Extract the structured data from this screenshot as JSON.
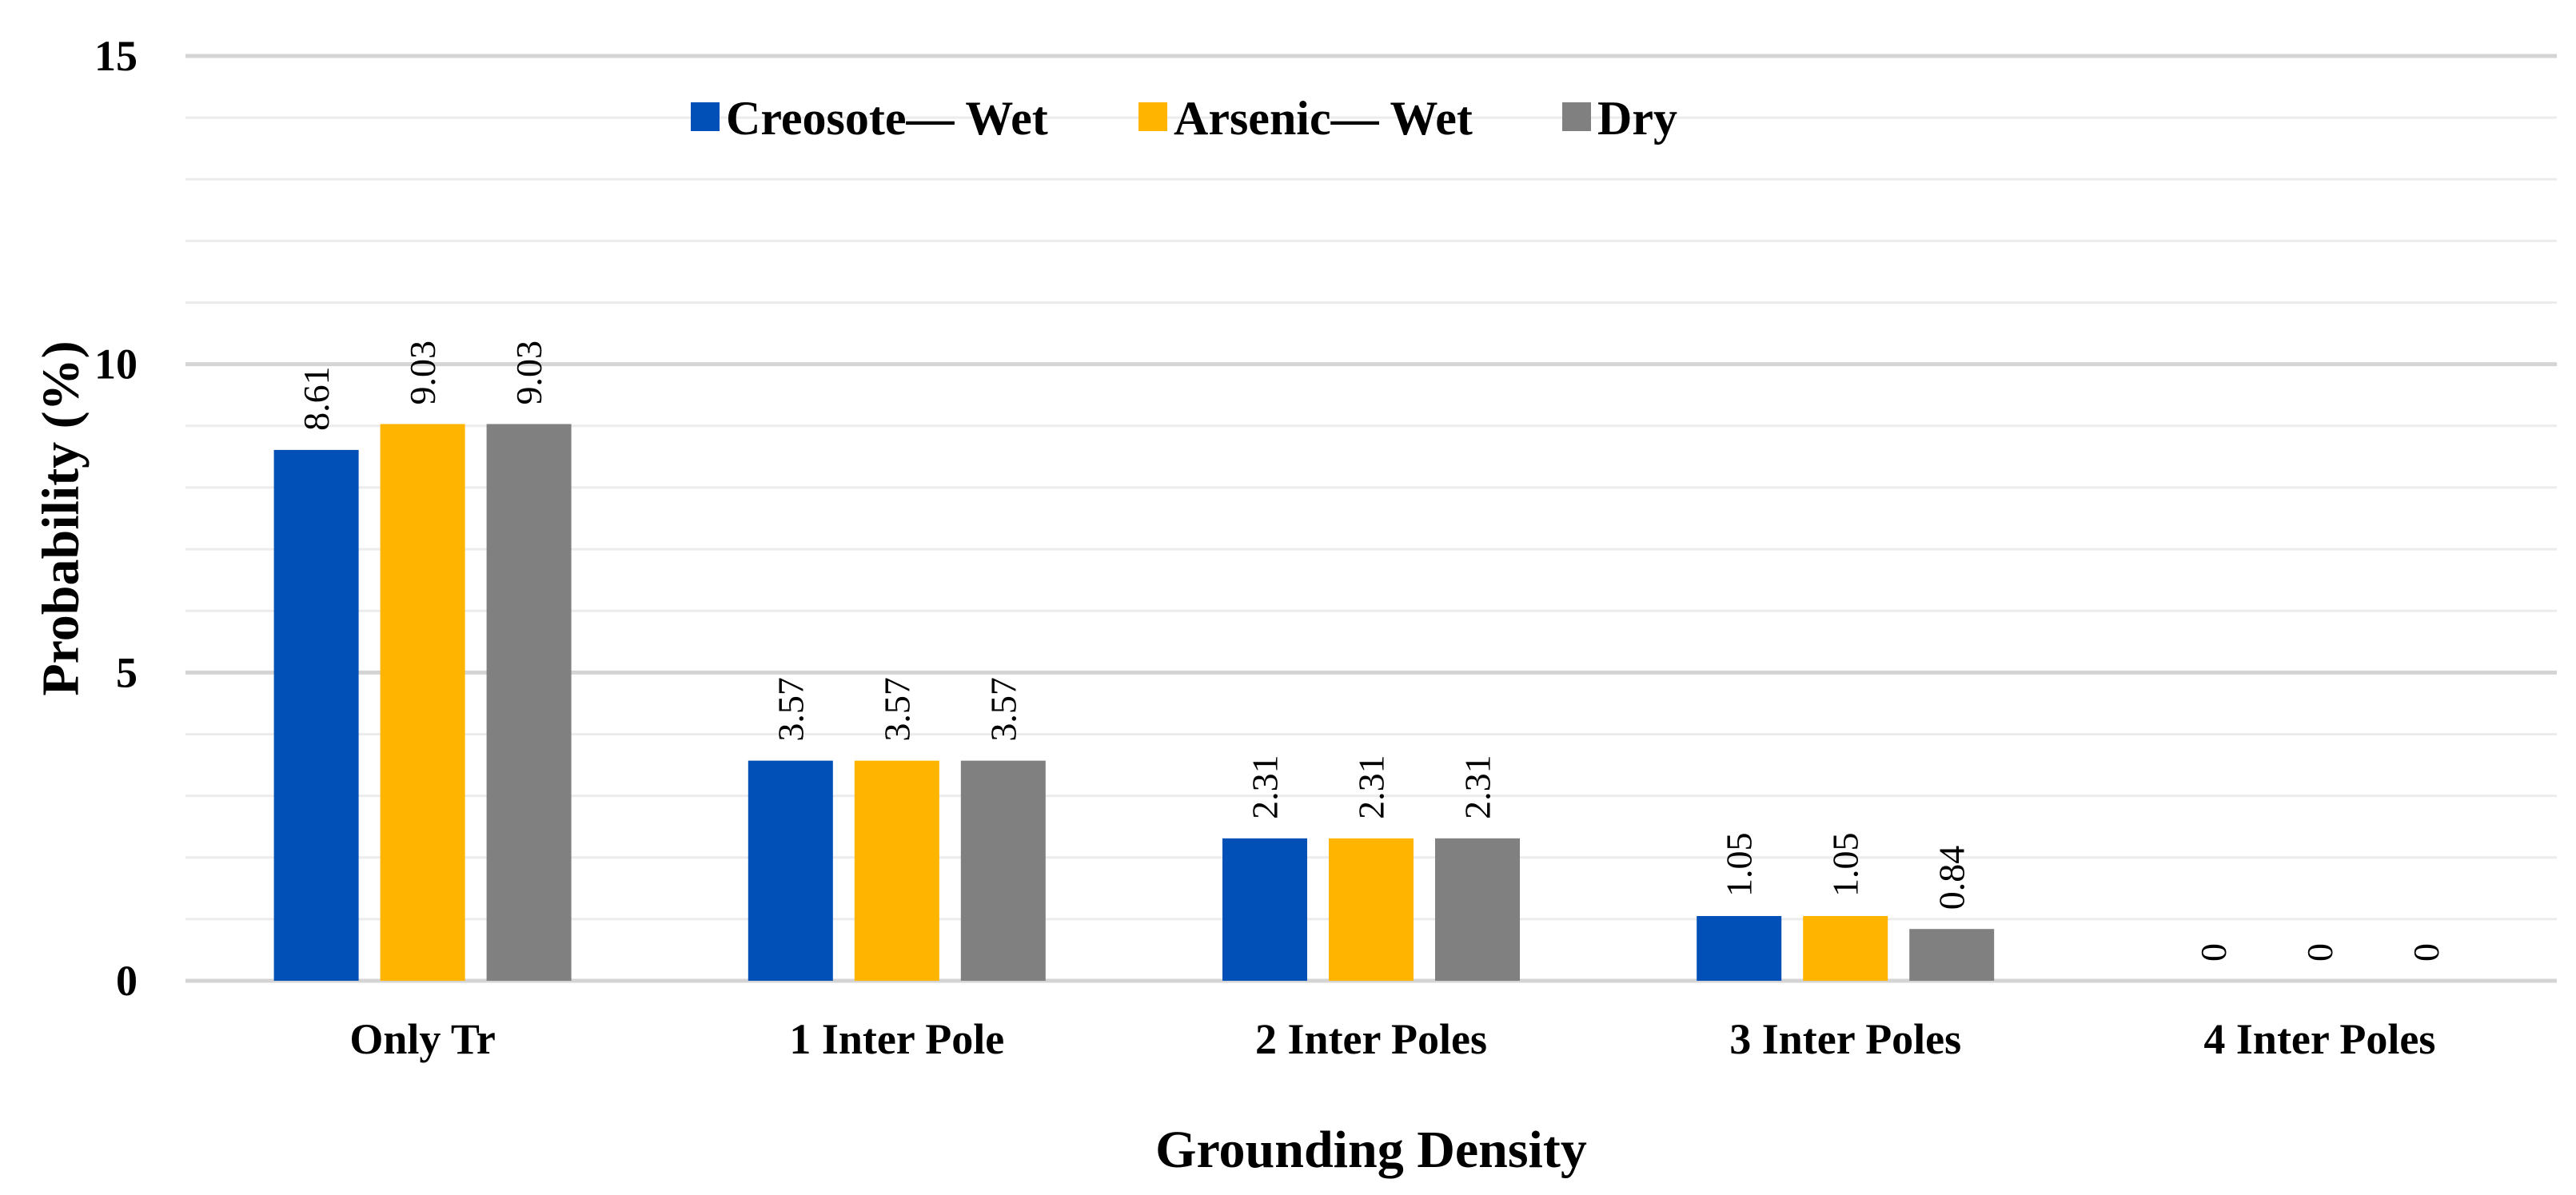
{
  "chart_data": {
    "type": "bar",
    "title": "",
    "xlabel": "Grounding Density",
    "ylabel": "Probability (%)",
    "ylim": [
      0,
      15
    ],
    "yticks": [
      "0",
      "5",
      "10",
      "15"
    ],
    "grid": true,
    "legend_position": "top",
    "categories": [
      "Only Tr",
      "1 Inter Pole",
      "2 Inter Poles",
      "3 Inter Poles",
      "4 Inter Poles"
    ],
    "series": [
      {
        "name": "Creosote— Wet",
        "color": "#0050B8",
        "values": [
          8.61,
          3.57,
          2.31,
          1.05,
          0
        ],
        "labels": [
          "8.61",
          "3.57",
          "2.31",
          "1.05",
          "0"
        ]
      },
      {
        "name": "Arsenic— Wet",
        "color": "#FFB400",
        "values": [
          9.03,
          3.57,
          2.31,
          1.05,
          0
        ],
        "labels": [
          "9.03",
          "3.57",
          "2.31",
          "1.05",
          "0"
        ]
      },
      {
        "name": "Dry",
        "color": "#808080",
        "values": [
          9.03,
          3.57,
          2.31,
          0.84,
          0
        ],
        "labels": [
          "9.03",
          "3.57",
          "2.31",
          "0.84",
          "0"
        ]
      }
    ]
  }
}
